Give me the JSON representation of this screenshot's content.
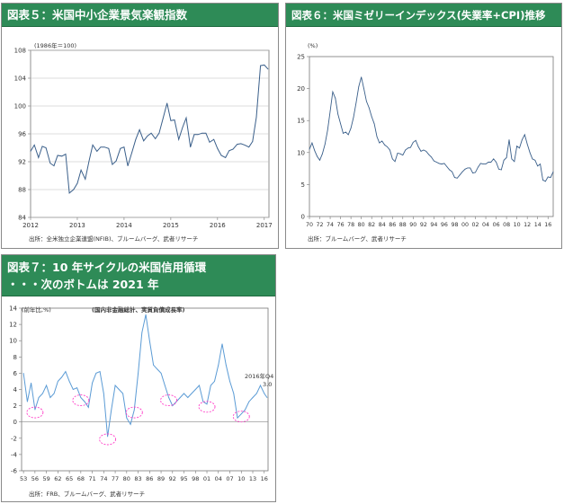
{
  "panels": {
    "fig5": {
      "title": "図表５：米国中小企業景気楽観指数",
      "unit_note": "(1986年＝100)",
      "source": "出所：全米独立企業連盟(NFIB)、ブルームバーグ、武者リサーチ"
    },
    "fig6": {
      "title": "図表６：米国ミゼリーインデックス(失業率+CPI)推移",
      "unit_note": "(%)",
      "source": "出所：ブルームバーグ、武者リサーチ"
    },
    "fig7": {
      "title_line1": "図表７：10 年サイクルの米国信用循環",
      "title_line2": "・・・次のボトムは 2021 年",
      "unit_note": "(前年比,%)",
      "chart_title": "(国内非金融総計、実質負債成長率)",
      "annotation_date": "2016年Q4",
      "annotation_value": "3.0",
      "source": "出所：FRB、ブルームバーグ、武者リサーチ"
    }
  },
  "colors": {
    "header_bg": "#2e8b57",
    "line": "#3a5f8a",
    "line7": "#5b9bd5",
    "highlight": "#ff3ec8"
  },
  "chart_data": [
    {
      "type": "line",
      "title": "図表５：米国中小企業景気楽観指数",
      "ylim": [
        84,
        108
      ],
      "yticks": [
        84,
        88,
        92,
        96,
        100,
        104,
        108
      ],
      "xlim": [
        2012,
        2017.1
      ],
      "xticks": [
        "2012",
        "2013",
        "2014",
        "2015",
        "2016",
        "2017"
      ],
      "x": [
        2012.0,
        2012.08,
        2012.17,
        2012.25,
        2012.33,
        2012.42,
        2012.5,
        2012.58,
        2012.67,
        2012.75,
        2012.83,
        2012.92,
        2013.0,
        2013.08,
        2013.17,
        2013.25,
        2013.33,
        2013.42,
        2013.5,
        2013.58,
        2013.67,
        2013.75,
        2013.83,
        2013.92,
        2014.0,
        2014.08,
        2014.17,
        2014.25,
        2014.33,
        2014.42,
        2014.5,
        2014.58,
        2014.67,
        2014.75,
        2014.83,
        2014.92,
        2015.0,
        2015.08,
        2015.17,
        2015.25,
        2015.33,
        2015.42,
        2015.5,
        2015.58,
        2015.67,
        2015.75,
        2015.83,
        2015.92,
        2016.0,
        2016.08,
        2016.17,
        2016.25,
        2016.33,
        2016.42,
        2016.5,
        2016.58,
        2016.67,
        2016.75,
        2016.83,
        2016.92,
        2017.0,
        2017.08
      ],
      "values": [
        93.5,
        94.4,
        92.6,
        94.2,
        94.0,
        91.8,
        91.4,
        92.9,
        92.8,
        93.1,
        87.5,
        88.0,
        88.9,
        90.8,
        89.5,
        92.1,
        94.4,
        93.5,
        94.1,
        94.1,
        93.9,
        91.6,
        92.1,
        93.9,
        94.1,
        91.4,
        93.4,
        95.2,
        96.6,
        95.0,
        95.7,
        96.1,
        95.3,
        96.1,
        98.1,
        100.4,
        97.9,
        98.0,
        95.2,
        96.9,
        98.3,
        94.1,
        95.9,
        95.9,
        96.1,
        96.1,
        94.8,
        95.2,
        93.9,
        92.9,
        92.6,
        93.6,
        93.8,
        94.5,
        94.6,
        94.4,
        94.1,
        94.9,
        98.4,
        105.8,
        105.9,
        105.3
      ],
      "source": "出所：全米独立企業連盟(NFIB)、ブルームバーグ、武者リサーチ"
    },
    {
      "type": "line",
      "title": "図表６：米国ミゼリーインデックス(失業率+CPI)推移",
      "ylim": [
        0,
        25
      ],
      "yticks": [
        0,
        5,
        10,
        15,
        20,
        25
      ],
      "xlim": [
        1970,
        2017
      ],
      "xticks": [
        "70",
        "72",
        "74",
        "76",
        "78",
        "80",
        "82",
        "84",
        "86",
        "88",
        "90",
        "92",
        "94",
        "96",
        "98",
        "00",
        "02",
        "04",
        "06",
        "08",
        "10",
        "12",
        "14",
        "16"
      ],
      "x": [
        1970,
        1970.5,
        1971,
        1971.5,
        1972,
        1972.5,
        1973,
        1973.5,
        1974,
        1974.5,
        1975,
        1975.5,
        1976,
        1976.5,
        1977,
        1977.5,
        1978,
        1978.5,
        1979,
        1979.5,
        1980,
        1980.5,
        1981,
        1981.5,
        1982,
        1982.5,
        1983,
        1983.5,
        1984,
        1984.5,
        1985,
        1985.5,
        1986,
        1986.5,
        1987,
        1987.5,
        1988,
        1988.5,
        1989,
        1989.5,
        1990,
        1990.5,
        1991,
        1991.5,
        1992,
        1992.5,
        1993,
        1993.5,
        1994,
        1994.5,
        1995,
        1995.5,
        1996,
        1996.5,
        1997,
        1997.5,
        1998,
        1998.5,
        1999,
        1999.5,
        2000,
        2000.5,
        2001,
        2001.5,
        2002,
        2002.5,
        2003,
        2003.5,
        2004,
        2004.5,
        2005,
        2005.5,
        2006,
        2006.5,
        2007,
        2007.5,
        2008,
        2008.5,
        2009,
        2009.5,
        2010,
        2010.5,
        2011,
        2011.5,
        2012,
        2012.5,
        2013,
        2013.5,
        2014,
        2014.5,
        2015,
        2015.5,
        2016,
        2016.5,
        2017
      ],
      "values": [
        10.5,
        11.5,
        10.3,
        9.4,
        8.8,
        9.8,
        11.3,
        13.5,
        16.5,
        19.5,
        18.5,
        16.0,
        14.5,
        13.0,
        13.2,
        12.8,
        13.8,
        15.5,
        17.8,
        20.3,
        21.8,
        20.0,
        18.0,
        17.0,
        15.6,
        14.5,
        12.5,
        11.5,
        11.8,
        11.2,
        10.9,
        10.4,
        9.0,
        8.6,
        9.9,
        9.8,
        9.6,
        10.4,
        10.7,
        10.8,
        11.6,
        11.9,
        10.9,
        10.2,
        10.4,
        10.2,
        9.7,
        9.3,
        8.7,
        8.5,
        8.3,
        8.2,
        8.3,
        7.8,
        7.3,
        7.0,
        6.1,
        6.0,
        6.5,
        7.0,
        7.4,
        7.6,
        7.6,
        6.8,
        6.9,
        7.7,
        8.3,
        8.2,
        8.2,
        8.5,
        8.5,
        9.0,
        8.5,
        7.4,
        7.3,
        8.8,
        9.2,
        12.0,
        9.0,
        8.6,
        11.0,
        10.7,
        12.0,
        12.8,
        11.3,
        10.0,
        9.0,
        8.8,
        7.9,
        8.2,
        5.7,
        5.5,
        6.2,
        6.1,
        7.0
      ],
      "source": "出所：ブルームバーグ、武者リサーチ"
    },
    {
      "type": "line",
      "title": "(国内非金融総計、実質負債成長率)",
      "ylim": [
        -6,
        14
      ],
      "yticks": [
        -6,
        -4,
        -2,
        0,
        2,
        4,
        6,
        8,
        10,
        12,
        14
      ],
      "xlim": [
        1952.5,
        2017
      ],
      "xticks": [
        "53",
        "56",
        "59",
        "62",
        "65",
        "68",
        "71",
        "74",
        "77",
        "80",
        "83",
        "86",
        "89",
        "92",
        "95",
        "98",
        "01",
        "04",
        "07",
        "10",
        "13",
        "16"
      ],
      "x": [
        1953,
        1954,
        1955,
        1956,
        1957,
        1958,
        1959,
        1960,
        1961,
        1962,
        1963,
        1964,
        1965,
        1966,
        1967,
        1968,
        1969,
        1970,
        1971,
        1972,
        1973,
        1974,
        1975,
        1976,
        1977,
        1978,
        1979,
        1980,
        1981,
        1982,
        1983,
        1984,
        1985,
        1986,
        1987,
        1988,
        1989,
        1990,
        1991,
        1992,
        1993,
        1994,
        1995,
        1996,
        1997,
        1998,
        1999,
        2000,
        2001,
        2002,
        2003,
        2004,
        2005,
        2006,
        2007,
        2008,
        2009,
        2010,
        2011,
        2012,
        2013,
        2014,
        2015,
        2016,
        2016.75
      ],
      "values": [
        6.0,
        2.5,
        4.8,
        1.5,
        3.0,
        3.5,
        4.5,
        3.0,
        3.5,
        5.0,
        5.5,
        6.2,
        5.0,
        4.0,
        4.2,
        3.0,
        2.5,
        1.8,
        4.8,
        6.0,
        6.2,
        3.5,
        -1.8,
        1.5,
        4.5,
        4.0,
        3.5,
        0.5,
        -0.3,
        1.5,
        6.0,
        11.0,
        13.2,
        10.0,
        7.0,
        6.5,
        6.0,
        4.5,
        3.0,
        2.0,
        2.5,
        3.0,
        3.5,
        3.0,
        3.5,
        4.0,
        4.5,
        2.5,
        2.2,
        4.5,
        5.0,
        7.0,
        9.6,
        7.0,
        5.0,
        3.5,
        0.5,
        1.0,
        1.5,
        2.5,
        3.0,
        3.5,
        4.5,
        3.5,
        3.0
      ],
      "highlight_bottoms": [
        "56",
        "68",
        "75",
        "82",
        "91",
        "01",
        "10"
      ],
      "source": "出所：FRB、ブルームバーグ、武者リサーチ"
    }
  ]
}
